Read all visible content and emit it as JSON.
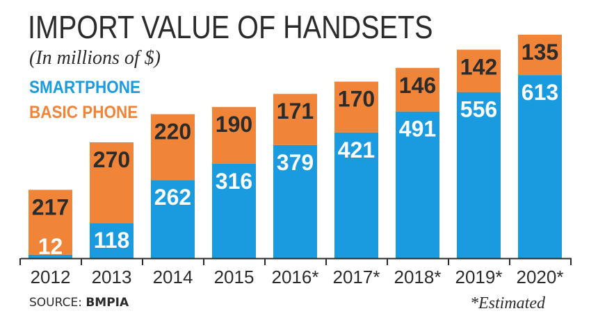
{
  "title": "IMPORT VALUE OF HANDSETS",
  "subtitle": "(In millions of $)",
  "source_label": "SOURCE:",
  "source_name": "BMPIA",
  "footnote": "*Estimated",
  "colors": {
    "smartphone": "#1a9be0",
    "basic_phone": "#f0853a",
    "axis": "#2b2b2b"
  },
  "chart_data": {
    "type": "bar",
    "stacked": true,
    "categories": [
      "2012",
      "2013",
      "2014",
      "2015",
      "2016*",
      "2017*",
      "2018*",
      "2019*",
      "2020*"
    ],
    "series": [
      {
        "name": "SMARTPHONE",
        "values": [
          12,
          118,
          262,
          316,
          379,
          421,
          491,
          556,
          613
        ]
      },
      {
        "name": "BASIC PHONE",
        "values": [
          217,
          270,
          220,
          190,
          171,
          170,
          146,
          142,
          135
        ]
      }
    ],
    "title": "IMPORT VALUE OF HANDSETS",
    "subtitle": "(In millions of $)",
    "xlabel": "",
    "ylabel": "",
    "ylim": [
      0,
      748
    ],
    "grid": false,
    "legend": "top-left"
  }
}
